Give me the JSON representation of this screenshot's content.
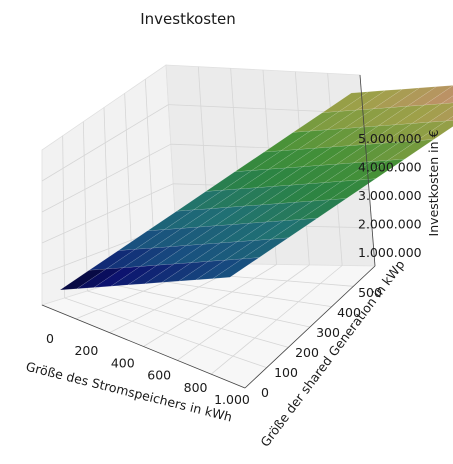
{
  "chart_data": {
    "type": "surface3d",
    "title": "Investkosten",
    "xlabel": "Größe des Stromspeichers in kWh",
    "ylabel": "Größe der shared Generation in kWp",
    "zlabel": "Investkosten in €",
    "x_ticks": [
      "0",
      "200",
      "400",
      "600",
      "800",
      "1.000"
    ],
    "y_ticks": [
      "0",
      "100",
      "200",
      "300",
      "400",
      "500"
    ],
    "z_ticks": [
      "1.000.000",
      "2.000.000",
      "3.000.000",
      "4.000.000",
      "5.000.000"
    ],
    "xlim": [
      0,
      1000
    ],
    "ylim": [
      0,
      500
    ],
    "zlim": [
      0,
      6000000
    ],
    "grid": true,
    "x": [
      0,
      100,
      200,
      300,
      400,
      500,
      600,
      700,
      800,
      900,
      1000
    ],
    "y": [
      0,
      50,
      100,
      150,
      200,
      250,
      300,
      350,
      400,
      450,
      500
    ],
    "z_model": {
      "z_at_x0_y0": 0,
      "z_at_x1000_y0": 1000000,
      "z_at_x0_y500": 4700000,
      "z_at_x1000_y500": 5700000
    },
    "colormap": "gist_earth"
  }
}
